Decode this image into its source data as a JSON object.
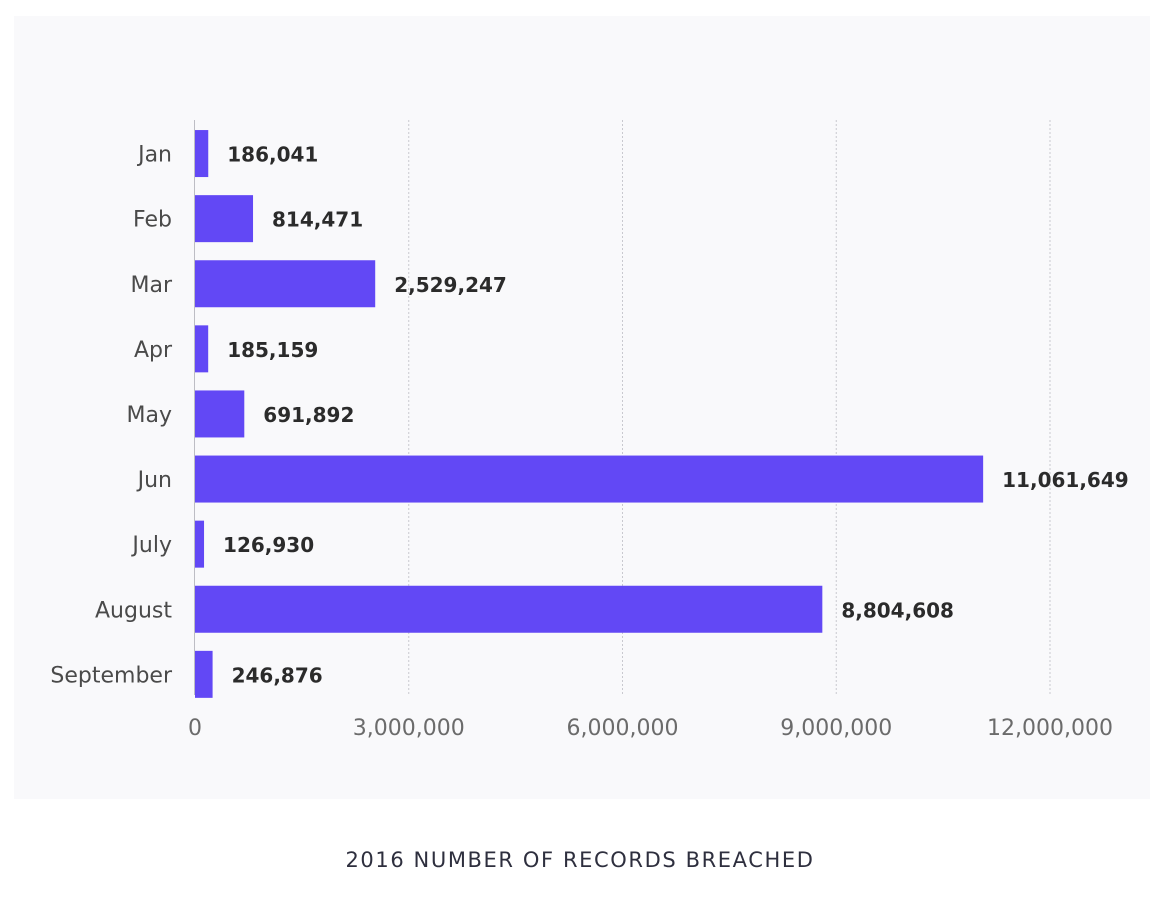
{
  "caption": "2016 NUMBER OF RECORDS BREACHED",
  "colors": {
    "bar": "#6248f5",
    "panel_background": "#f9f9fb",
    "gridline": "#c9c9cf",
    "axis_line": "#bdbdc4",
    "category_text": "#4a4a4a",
    "value_text": "#2b2b2b",
    "tick_text": "#6b6b6b"
  },
  "chart_data": {
    "type": "bar",
    "orientation": "horizontal",
    "categories": [
      "Jan",
      "Feb",
      "Mar",
      "Apr",
      "May",
      "Jun",
      "July",
      "August",
      "September"
    ],
    "values": [
      186041,
      814471,
      2529247,
      185159,
      691892,
      11061649,
      126930,
      8804608,
      246876
    ],
    "value_labels": [
      "186,041",
      "814,471",
      "2,529,247",
      "185,159",
      "691,892",
      "11,061,649",
      "126,930",
      "8,804,608",
      "246,876"
    ],
    "x_ticks": [
      0,
      3000000,
      6000000,
      9000000,
      12000000
    ],
    "x_tick_labels": [
      "0",
      "3,000,000",
      "6,000,000",
      "9,000,000",
      "12,000,000"
    ],
    "xlim": [
      0,
      12000000
    ],
    "title": "",
    "xlabel": "",
    "ylabel": "",
    "grid": "vertical dotted",
    "legend": "none"
  }
}
